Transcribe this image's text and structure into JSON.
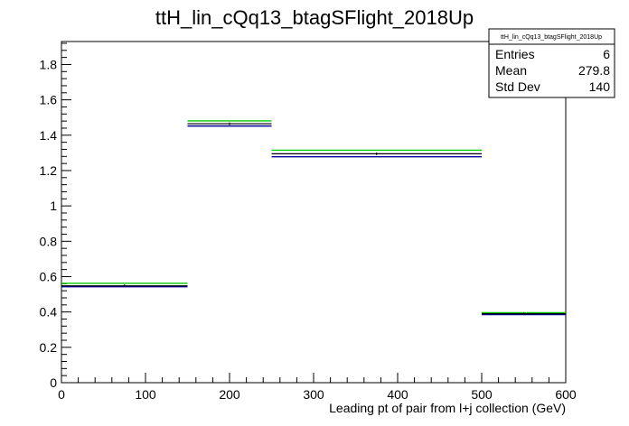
{
  "chart_data": {
    "type": "histogram",
    "title": "ttH_lin_cQq13_btagSFlight_2018Up",
    "xlabel": "Leading pt of pair from l+j collection (GeV)",
    "ylabel": "",
    "xlim": [
      0,
      600
    ],
    "ylim": [
      0,
      1.93
    ],
    "x_ticks": [
      0,
      100,
      200,
      300,
      400,
      500,
      600
    ],
    "y_ticks": [
      0,
      0.2,
      0.4,
      0.6,
      0.8,
      1,
      1.2,
      1.4,
      1.6,
      1.8
    ],
    "x_tick_labels": [
      "0",
      "100",
      "200",
      "300",
      "400",
      "500",
      "600"
    ],
    "y_tick_labels": [
      "0",
      "0.2",
      "0.4",
      "0.6",
      "0.8",
      "1",
      "1.2",
      "1.4",
      "1.6",
      "1.8"
    ],
    "bins": [
      {
        "low": 0,
        "high": 150,
        "values": {
          "black": 0.548,
          "blue": 0.543,
          "green": 0.562
        }
      },
      {
        "low": 150,
        "high": 250,
        "values": {
          "black": 1.465,
          "blue": 1.452,
          "green": 1.481
        }
      },
      {
        "low": 250,
        "high": 500,
        "values": {
          "black": 1.295,
          "blue": 1.278,
          "green": 1.315
        }
      },
      {
        "low": 500,
        "high": 600,
        "values": {
          "black": 0.39,
          "blue": 0.385,
          "green": 0.396
        }
      }
    ],
    "series_colors": {
      "black": "#000000",
      "blue": "#000099",
      "green": "#00cc00"
    },
    "stats_box": {
      "title": "ttH_lin_cQq13_btagSFlight_2018Up",
      "rows": [
        {
          "label": "Entries",
          "value": "6"
        },
        {
          "label": "Mean",
          "value": "279.8"
        },
        {
          "label": "Std Dev",
          "value": "140"
        }
      ]
    },
    "grid": false,
    "legend": "none"
  }
}
